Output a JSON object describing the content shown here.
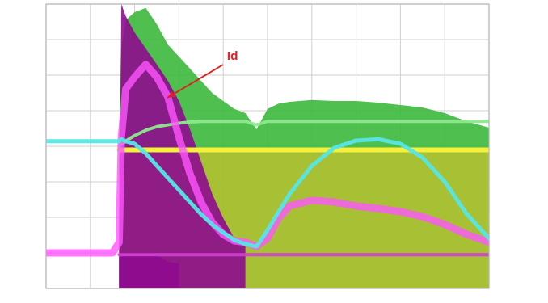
{
  "chart_data": {
    "type": "line",
    "grid": true,
    "tick_labels": false,
    "xlim": [
      0,
      10
    ],
    "ylim": [
      0,
      8
    ],
    "xticks": [
      0,
      1,
      2,
      3,
      4,
      5,
      6,
      7,
      8,
      9,
      10
    ],
    "yticks": [
      0,
      1,
      2,
      3,
      4,
      5,
      6,
      7,
      8
    ],
    "x": [
      0,
      1.5,
      1.65,
      1.7,
      1.8,
      2.0,
      2.25,
      2.5,
      2.75,
      3.0,
      3.25,
      3.5,
      3.75,
      4.0,
      4.25,
      4.5,
      4.75,
      5.0,
      5.25,
      5.5,
      6.0,
      6.5,
      7.0,
      7.5,
      8.0,
      8.5,
      9.0,
      9.5,
      10
    ],
    "series": [
      {
        "type": "area",
        "color": "#3cb83c",
        "values": [
          null,
          null,
          4.25,
          6.75,
          7.55,
          7.77,
          7.89,
          7.43,
          6.86,
          6.52,
          6.18,
          5.84,
          5.5,
          5.27,
          5.05,
          4.93,
          4.48,
          5.05,
          5.2,
          5.25,
          5.3,
          5.27,
          5.27,
          5.23,
          5.16,
          5.09,
          4.93,
          4.7,
          4.52
        ]
      },
      {
        "type": "area",
        "color": "#c9c12a",
        "values": [
          null,
          null,
          3.9,
          3.9,
          3.9,
          3.9,
          3.9,
          3.9,
          3.9,
          3.9,
          3.9,
          3.9,
          3.9,
          3.9,
          3.9,
          3.9,
          3.9,
          3.9,
          3.9,
          3.9,
          3.9,
          3.9,
          3.9,
          3.9,
          3.9,
          3.9,
          3.9,
          3.9,
          3.9
        ]
      },
      {
        "type": "area",
        "color": "#8e0b8e",
        "values": [
          null,
          null,
          1.3,
          8.0,
          7.66,
          7.2,
          6.75,
          6.3,
          5.84,
          5.27,
          4.48,
          3.57,
          2.66,
          1.98,
          1.41,
          1.18,
          null,
          null,
          null,
          null,
          null,
          null,
          null,
          null,
          null,
          null,
          null,
          null,
          null
        ]
      },
      {
        "type": "area",
        "color": "#8e0b8e",
        "values": [
          null,
          null,
          0.95,
          0.95,
          0.95,
          0.95,
          0.95,
          0.95,
          0.75,
          0.7,
          null,
          null,
          null,
          null,
          null,
          null,
          null,
          null,
          null,
          null,
          null,
          null,
          null,
          null,
          null,
          null,
          null,
          null,
          null
        ]
      },
      {
        "type": "line",
        "color": "#d040d0",
        "values": [
          null,
          null,
          0.95,
          0.95,
          0.95,
          0.95,
          0.95,
          0.95,
          0.95,
          0.95,
          0.95,
          0.95,
          0.95,
          0.95,
          0.95,
          0.95,
          0.95,
          0.95,
          0.95,
          0.95,
          0.95,
          0.95,
          0.95,
          0.95,
          0.95,
          0.95,
          0.95,
          0.95,
          0.95
        ]
      },
      {
        "type": "line",
        "color": "#f5f03c",
        "values": [
          null,
          null,
          3.9,
          3.9,
          3.9,
          3.9,
          3.9,
          3.9,
          3.9,
          3.9,
          3.9,
          3.9,
          3.9,
          3.9,
          3.9,
          3.9,
          3.9,
          3.9,
          3.9,
          3.9,
          3.9,
          3.9,
          3.9,
          3.9,
          3.9,
          3.9,
          3.9,
          3.9,
          3.9
        ]
      },
      {
        "type": "line",
        "color": "#8ee88e",
        "values": [
          null,
          null,
          4.0,
          4.05,
          4.15,
          4.3,
          4.45,
          4.55,
          4.6,
          4.65,
          4.68,
          4.7,
          4.7,
          4.7,
          4.7,
          4.7,
          4.6,
          4.7,
          4.7,
          4.7,
          4.7,
          4.7,
          4.7,
          4.7,
          4.7,
          4.7,
          4.7,
          4.7,
          4.7
        ]
      },
      {
        "type": "line",
        "color": "#ff55ff",
        "values": [
          1.0,
          1.0,
          1.3,
          4.25,
          5.61,
          5.95,
          6.3,
          5.95,
          5.39,
          4.25,
          3.23,
          2.43,
          1.86,
          1.52,
          1.34,
          1.3,
          1.18,
          1.41,
          1.98,
          2.32,
          2.48,
          2.43,
          2.32,
          2.25,
          2.16,
          2.02,
          1.8,
          1.52,
          1.3
        ]
      },
      {
        "type": "line",
        "color": "#55e6e6",
        "values": [
          4.14,
          4.14,
          4.14,
          4.2,
          4.14,
          4.07,
          3.8,
          3.45,
          3.11,
          2.77,
          2.43,
          2.09,
          1.8,
          1.57,
          1.36,
          1.25,
          1.18,
          1.64,
          2.16,
          2.66,
          3.45,
          3.95,
          4.16,
          4.2,
          4.07,
          3.68,
          3.0,
          2.09,
          1.41
        ]
      }
    ],
    "annotations": [
      {
        "text": "Id",
        "color": "#e02020"
      }
    ]
  }
}
